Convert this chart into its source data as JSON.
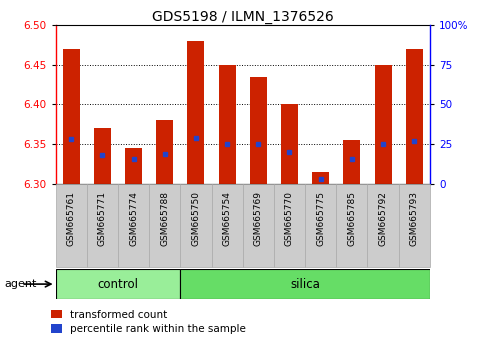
{
  "title": "GDS5198 / ILMN_1376526",
  "samples": [
    "GSM665761",
    "GSM665771",
    "GSM665774",
    "GSM665788",
    "GSM665750",
    "GSM665754",
    "GSM665769",
    "GSM665770",
    "GSM665775",
    "GSM665785",
    "GSM665792",
    "GSM665793"
  ],
  "groups": [
    "control",
    "control",
    "control",
    "control",
    "silica",
    "silica",
    "silica",
    "silica",
    "silica",
    "silica",
    "silica",
    "silica"
  ],
  "transformed_counts": [
    6.47,
    6.37,
    6.345,
    6.38,
    6.48,
    6.45,
    6.435,
    6.4,
    6.315,
    6.355,
    6.45,
    6.47
  ],
  "percentile_ranks": [
    28,
    18,
    16,
    19,
    29,
    25,
    25,
    20,
    3,
    16,
    25,
    27
  ],
  "ylim_left": [
    6.3,
    6.5
  ],
  "ylim_right": [
    0,
    100
  ],
  "yticks_left": [
    6.3,
    6.35,
    6.4,
    6.45,
    6.5
  ],
  "yticks_right": [
    0,
    25,
    50,
    75,
    100
  ],
  "bar_color": "#cc2200",
  "dot_color": "#2244cc",
  "bar_width": 0.55,
  "grid_color": "#000000",
  "control_color": "#99ee99",
  "silica_color": "#66dd66",
  "label_bg": "#cccccc",
  "legend_items": [
    "transformed count",
    "percentile rank within the sample"
  ],
  "right_tick_labels": [
    "0",
    "25",
    "50",
    "75",
    "100%"
  ]
}
